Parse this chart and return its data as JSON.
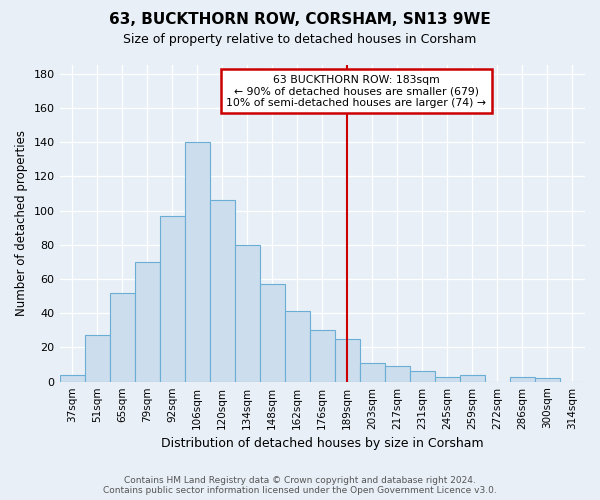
{
  "title": "63, BUCKTHORN ROW, CORSHAM, SN13 9WE",
  "subtitle": "Size of property relative to detached houses in Corsham",
  "xlabel": "Distribution of detached houses by size in Corsham",
  "ylabel": "Number of detached properties",
  "categories": [
    "37sqm",
    "51sqm",
    "65sqm",
    "79sqm",
    "92sqm",
    "106sqm",
    "120sqm",
    "134sqm",
    "148sqm",
    "162sqm",
    "176sqm",
    "189sqm",
    "203sqm",
    "217sqm",
    "231sqm",
    "245sqm",
    "259sqm",
    "272sqm",
    "286sqm",
    "300sqm",
    "314sqm"
  ],
  "values": [
    4,
    27,
    52,
    70,
    97,
    140,
    106,
    80,
    57,
    41,
    30,
    25,
    11,
    9,
    6,
    3,
    4,
    0,
    3,
    2,
    0
  ],
  "bar_color": "#ccdded",
  "bar_edge_color": "#6aaed6",
  "vline_x": 11.0,
  "annotation_title": "63 BUCKTHORN ROW: 183sqm",
  "annotation_line1": "← 90% of detached houses are smaller (679)",
  "annotation_line2": "10% of semi-detached houses are larger (74) →",
  "annotation_box_color": "#ffffff",
  "annotation_box_edge": "#cc0000",
  "vline_color": "#cc0000",
  "ylim": [
    0,
    185
  ],
  "yticks": [
    0,
    20,
    40,
    60,
    80,
    100,
    120,
    140,
    160,
    180
  ],
  "footer1": "Contains HM Land Registry data © Crown copyright and database right 2024.",
  "footer2": "Contains public sector information licensed under the Open Government Licence v3.0.",
  "background_color": "#e8eff6",
  "plot_background": "#e8eff6"
}
